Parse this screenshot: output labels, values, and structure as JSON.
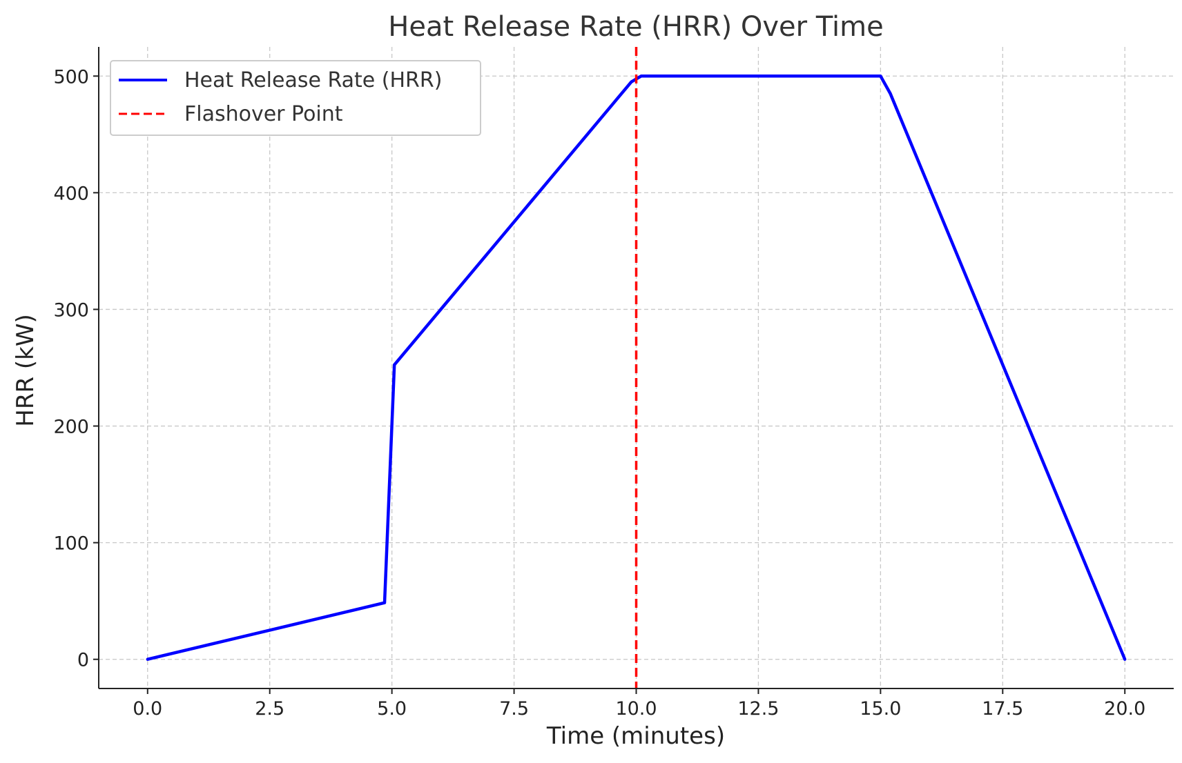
{
  "chart_data": {
    "type": "line",
    "title": "Heat Release Rate (HRR) Over Time",
    "xlabel": "Time (minutes)",
    "ylabel": "HRR (kW)",
    "xlim": [
      -1,
      21
    ],
    "ylim": [
      -25,
      525
    ],
    "xticks": [
      0,
      2.5,
      5,
      7.5,
      10,
      12.5,
      15,
      17.5,
      20
    ],
    "xtick_labels": [
      "0.0",
      "2.5",
      "5.0",
      "7.5",
      "10.0",
      "12.5",
      "15.0",
      "17.5",
      "20.0"
    ],
    "yticks": [
      0,
      100,
      200,
      300,
      400,
      500
    ],
    "ytick_labels": [
      "0",
      "100",
      "200",
      "300",
      "400",
      "500"
    ],
    "grid": true,
    "legend_position": "top-left",
    "series": [
      {
        "name": "Heat Release Rate (HRR)",
        "color": "#0000ff",
        "style": "solid",
        "x": [
          0,
          4.85,
          5.05,
          9.9,
          10.1,
          15.0,
          15.2,
          20.0
        ],
        "y": [
          0,
          48.5,
          252.5,
          495,
          500,
          500,
          485,
          0
        ]
      }
    ],
    "vlines": [
      {
        "name": "Flashover Point",
        "color": "#ff0000",
        "style": "dashed",
        "x": 10
      }
    ]
  }
}
